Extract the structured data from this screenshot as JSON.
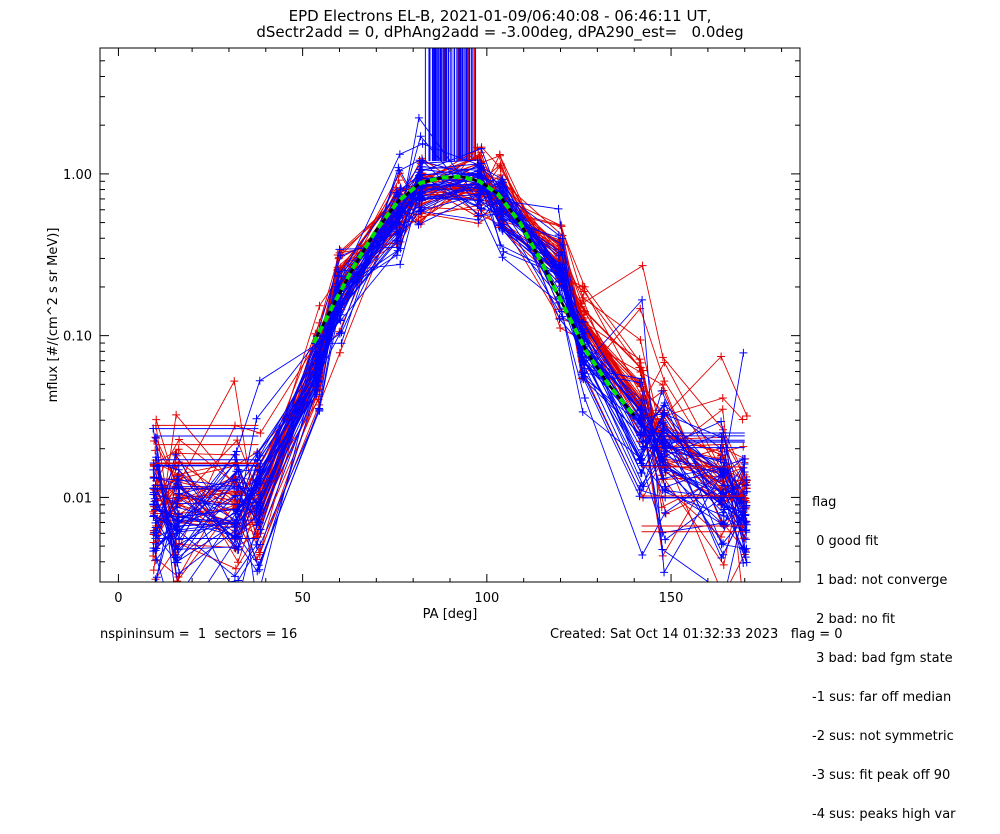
{
  "chart_data": {
    "type": "line",
    "title": "EPD Electrons EL-B, 2021-01-09/06:40:08 - 06:46:11 UT,",
    "subtitle": "dSectr2add = 0, dPhAng2add = -3.00deg, dPA290_est=   0.0deg",
    "xlabel": "PA [deg]",
    "ylabel": "mflux [#/(cm^2 s sr MeV)]",
    "xlim": [
      -5,
      185
    ],
    "ylim": [
      0.003,
      6.0
    ],
    "yscale": "log",
    "x_ticks": [
      0,
      50,
      100,
      150
    ],
    "x_tick_labels": [
      "0",
      "50",
      "100",
      "150"
    ],
    "y_ticks": [
      0.01,
      0.1,
      1.0
    ],
    "y_tick_labels": [
      "0.01",
      "0.10",
      "1.00"
    ],
    "grid": false,
    "colors": {
      "red": "#e00000",
      "blue": "#0000ff",
      "green": "#00e000"
    },
    "fit": {
      "x": [
        53,
        58,
        64,
        70,
        76,
        82,
        88,
        93,
        98,
        103,
        109,
        115,
        121,
        127,
        133,
        140
      ],
      "y": [
        0.09,
        0.15,
        0.27,
        0.45,
        0.68,
        0.88,
        0.95,
        0.96,
        0.9,
        0.75,
        0.5,
        0.28,
        0.15,
        0.08,
        0.05,
        0.032
      ]
    },
    "series": [
      {
        "color": "red",
        "x": [
          10,
          16,
          32,
          38,
          54,
          60,
          76,
          82,
          98,
          104,
          120,
          126,
          142,
          148,
          164,
          170
        ],
        "y": [
          0.0095,
          0.01,
          0.009,
          0.011,
          0.07,
          0.2,
          0.6,
          0.8,
          0.82,
          0.65,
          0.3,
          0.12,
          0.04,
          0.02,
          0.012,
          0.01
        ]
      },
      {
        "color": "blue",
        "x": [
          10,
          16,
          32,
          38,
          54,
          60,
          76,
          82,
          98,
          104,
          120,
          126,
          142,
          148,
          164,
          170
        ],
        "y": [
          0.0085,
          0.0075,
          0.0085,
          0.011,
          0.06,
          0.17,
          0.55,
          0.85,
          0.86,
          0.62,
          0.25,
          0.08,
          0.028,
          0.016,
          0.009,
          0.008
        ]
      }
    ],
    "vertical_lines": {
      "color": "blue",
      "x_range": [
        83,
        97
      ],
      "y_range": [
        1.2,
        6.0
      ]
    }
  },
  "legend": {
    "title": "flag",
    "items": [
      " 0 good fit",
      " 1 bad: not converge",
      " 2 bad: no fit",
      " 3 bad: bad fgm state",
      "-1 sus: far off median",
      "-2 sus: not symmetric",
      "-3 sus: fit peak off 90",
      "-4 sus: peaks high var"
    ]
  },
  "footer": {
    "left": "nspininsum =  1  sectors = 16",
    "right": "Created: Sat Oct 14 01:32:33 2023   flag = 0"
  }
}
